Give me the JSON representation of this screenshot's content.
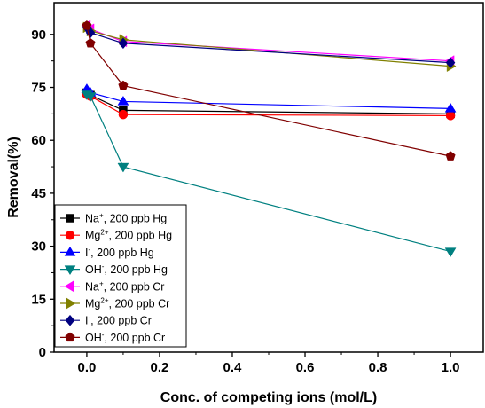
{
  "chart_data": {
    "type": "line",
    "title": "",
    "xlabel": "Conc. of competing ions (mol/L)",
    "ylabel": "Removal(%)",
    "xlim": [
      -0.09,
      1.09
    ],
    "ylim": [
      0,
      99
    ],
    "xticks": [
      "0.0",
      "0.2",
      "0.4",
      "0.6",
      "0.8",
      "1.0"
    ],
    "yticks": [
      "0",
      "15",
      "30",
      "45",
      "60",
      "75",
      "90"
    ],
    "x": [
      0,
      0.01,
      0.1,
      1.0
    ],
    "legend_position": "bottom-left",
    "series": [
      {
        "ion": "Na",
        "sup": "+",
        "suffix": ", 200 ppb Hg",
        "color": "#000000",
        "marker": "square",
        "values": [
          73.5,
          72.8,
          68.5,
          67.5
        ]
      },
      {
        "ion": "Mg",
        "sup": "2+",
        "suffix": ", 200 ppb Hg",
        "color": "#ff0000",
        "marker": "circle",
        "values": [
          73.0,
          72.5,
          67.3,
          67.0
        ]
      },
      {
        "ion": "I",
        "sup": "-",
        "suffix": ", 200 ppb Hg",
        "color": "#0000ff",
        "marker": "triangle-up",
        "values": [
          74.5,
          73.5,
          71.0,
          69.0
        ]
      },
      {
        "ion": "OH",
        "sup": "-",
        "suffix": ", 200 ppb Hg",
        "color": "#008080",
        "marker": "triangle-down",
        "values": [
          73.0,
          72.5,
          52.5,
          28.5
        ]
      },
      {
        "ion": "Na",
        "sup": "+",
        "suffix": ", 200 ppb Cr",
        "color": "#ff00ff",
        "marker": "triangle-left",
        "values": [
          92.5,
          91.5,
          88.0,
          82.5
        ]
      },
      {
        "ion": "Mg",
        "sup": "2+",
        "suffix": ", 200 ppb Cr",
        "color": "#808000",
        "marker": "triangle-right",
        "values": [
          92.0,
          91.0,
          88.5,
          81.0
        ]
      },
      {
        "ion": "I",
        "sup": "-",
        "suffix": ", 200 ppb Cr",
        "color": "#000080",
        "marker": "diamond",
        "values": [
          92.0,
          90.5,
          87.5,
          82.0
        ]
      },
      {
        "ion": "OH",
        "sup": "-",
        "suffix": ", 200 ppb Cr",
        "color": "#800000",
        "marker": "pentagon",
        "values": [
          92.5,
          87.5,
          75.5,
          55.5
        ]
      }
    ]
  }
}
